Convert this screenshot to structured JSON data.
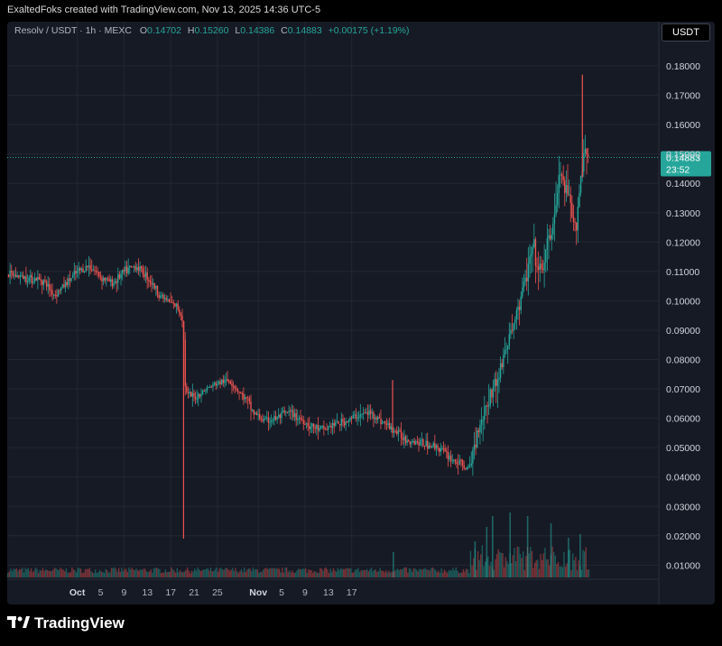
{
  "header": {
    "credit": "ExaltedFoks created with TradingView.com, Nov 13, 2025 14:36 UTC-5"
  },
  "legend": {
    "symbol": "Resolv / USDT · 1h · MEXC",
    "o_label": "O",
    "o_value": "0.14702",
    "h_label": "H",
    "h_value": "0.15260",
    "l_label": "L",
    "l_value": "0.14386",
    "c_label": "C",
    "c_value": "0.14883",
    "change": "+0.00175 (+1.19%)"
  },
  "unit_badge": "USDT",
  "price_tag": {
    "price": "0.14883",
    "countdown": "23:52"
  },
  "footer": {
    "brand": "TradingView"
  },
  "colors": {
    "up": "#26a69a",
    "down": "#ef5350",
    "background": "#161a25",
    "grid": "#232733",
    "text": "#b2b5be"
  },
  "chart_data": {
    "type": "candlestick",
    "ylim": [
      0.0,
      0.185
    ],
    "yticks": [
      "0.18000",
      "0.17000",
      "0.16000",
      "0.15000",
      "0.14000",
      "0.13000",
      "0.12000",
      "0.11000",
      "0.10000",
      "0.09000",
      "0.08000",
      "0.07000",
      "0.06000",
      "0.05000",
      "0.04000",
      "0.03000",
      "0.02000",
      "0.01000"
    ],
    "x_ticks": [
      "Oct",
      "5",
      "9",
      "13",
      "17",
      "21",
      "25",
      "Nov",
      "5",
      "9",
      "13",
      "17"
    ],
    "last_price": 0.14883,
    "price_path": [
      [
        0,
        0.109
      ],
      [
        3,
        0.108
      ],
      [
        6,
        0.107
      ],
      [
        8,
        0.102
      ],
      [
        10,
        0.106
      ],
      [
        12,
        0.11
      ],
      [
        14,
        0.112
      ],
      [
        16,
        0.108
      ],
      [
        18,
        0.106
      ],
      [
        20,
        0.11
      ],
      [
        22,
        0.112
      ],
      [
        24,
        0.108
      ],
      [
        26,
        0.102
      ],
      [
        28,
        0.099
      ],
      [
        29,
        0.098
      ],
      [
        30,
        0.094
      ],
      [
        30.4,
        0.07
      ],
      [
        30.7,
        0.068
      ],
      [
        32,
        0.067
      ],
      [
        34,
        0.07
      ],
      [
        36,
        0.072
      ],
      [
        38,
        0.073
      ],
      [
        40,
        0.068
      ],
      [
        41,
        0.066
      ],
      [
        42,
        0.062
      ],
      [
        44,
        0.059
      ],
      [
        46,
        0.06
      ],
      [
        48,
        0.062
      ],
      [
        50,
        0.06
      ],
      [
        52,
        0.057
      ],
      [
        54,
        0.056
      ],
      [
        56,
        0.058
      ],
      [
        58,
        0.059
      ],
      [
        60,
        0.061
      ],
      [
        62,
        0.062
      ],
      [
        64,
        0.059
      ],
      [
        66,
        0.056
      ],
      [
        68,
        0.053
      ],
      [
        70,
        0.052
      ],
      [
        72,
        0.051
      ],
      [
        74,
        0.05
      ],
      [
        76,
        0.046
      ],
      [
        77,
        0.045
      ],
      [
        78,
        0.044
      ],
      [
        79,
        0.042
      ],
      [
        80,
        0.052
      ],
      [
        81,
        0.06
      ],
      [
        82,
        0.065
      ],
      [
        83,
        0.07
      ],
      [
        84,
        0.074
      ],
      [
        85,
        0.082
      ],
      [
        86,
        0.088
      ],
      [
        87,
        0.095
      ],
      [
        88,
        0.102
      ],
      [
        89,
        0.11
      ],
      [
        90,
        0.118
      ],
      [
        91,
        0.108
      ],
      [
        92,
        0.115
      ],
      [
        93,
        0.123
      ],
      [
        94,
        0.133
      ],
      [
        94.5,
        0.145
      ],
      [
        95,
        0.14
      ],
      [
        96,
        0.135
      ],
      [
        96.5,
        0.13
      ],
      [
        97,
        0.123
      ],
      [
        97.5,
        0.13
      ],
      [
        98,
        0.14
      ],
      [
        98.5,
        0.148
      ],
      [
        99,
        0.155
      ],
      [
        99.3,
        0.149
      ],
      [
        99.5,
        0.14883
      ]
    ],
    "spikes": [
      {
        "day": 30.2,
        "low": 0.019,
        "high": 0.092
      },
      {
        "day": 66,
        "low": 0.055,
        "high": 0.073
      },
      {
        "day": 98.5,
        "low": 0.142,
        "high": 0.177
      }
    ],
    "volume_bursts": [
      {
        "day": 66,
        "v": 0.35
      },
      {
        "day": 80,
        "v": 0.5
      },
      {
        "day": 82,
        "v": 0.7
      },
      {
        "day": 83,
        "v": 0.85
      },
      {
        "day": 86,
        "v": 0.9
      },
      {
        "day": 89,
        "v": 0.85
      },
      {
        "day": 93,
        "v": 0.75
      },
      {
        "day": 96,
        "v": 0.55
      },
      {
        "day": 98,
        "v": 0.6
      }
    ]
  }
}
